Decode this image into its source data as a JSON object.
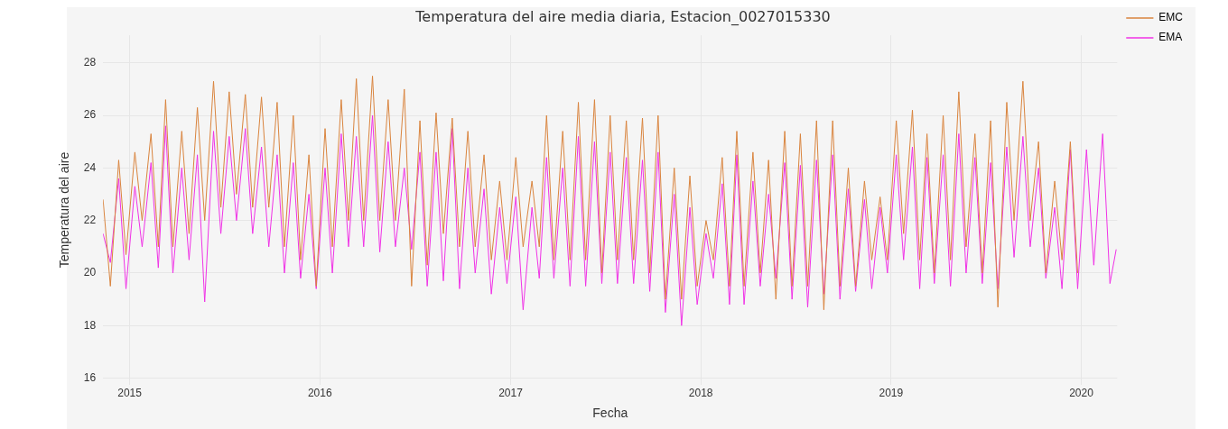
{
  "chart_data": {
    "type": "line",
    "title": "Temperatura del aire media diaria, Estacion_0027015330",
    "xlabel": "Fecha",
    "ylabel": "Temperatura del aire",
    "x": [
      "2014-11-11",
      "2014-11-25",
      "2014-12-11",
      "2014-12-25",
      "2015-01-11",
      "2015-01-25",
      "2015-02-11",
      "2015-02-25",
      "2015-03-11",
      "2015-03-25",
      "2015-04-11",
      "2015-04-25",
      "2015-05-11",
      "2015-05-25",
      "2015-06-11",
      "2015-06-25",
      "2015-07-11",
      "2015-07-25",
      "2015-08-11",
      "2015-08-25",
      "2015-09-11",
      "2015-09-25",
      "2015-10-11",
      "2015-10-25",
      "2015-11-11",
      "2015-11-25",
      "2015-12-11",
      "2015-12-25",
      "2016-01-11",
      "2016-01-25",
      "2016-02-11",
      "2016-02-25",
      "2016-03-11",
      "2016-03-25",
      "2016-04-11",
      "2016-04-25",
      "2016-05-11",
      "2016-05-25",
      "2016-06-11",
      "2016-06-25",
      "2016-07-11",
      "2016-07-25",
      "2016-08-11",
      "2016-08-25",
      "2016-09-11",
      "2016-09-25",
      "2016-10-11",
      "2016-10-25",
      "2016-11-11",
      "2016-11-25",
      "2016-12-11",
      "2016-12-25",
      "2017-01-11",
      "2017-01-25",
      "2017-02-11",
      "2017-02-25",
      "2017-03-11",
      "2017-03-25",
      "2017-04-11",
      "2017-04-25",
      "2017-05-11",
      "2017-05-25",
      "2017-06-11",
      "2017-06-25",
      "2017-07-11",
      "2017-07-25",
      "2017-08-11",
      "2017-08-25",
      "2017-09-11",
      "2017-09-25",
      "2017-10-11",
      "2017-10-25",
      "2017-11-11",
      "2017-11-25",
      "2017-12-11",
      "2017-12-25",
      "2018-01-11",
      "2018-01-25",
      "2018-02-11",
      "2018-02-25",
      "2018-03-11",
      "2018-03-25",
      "2018-04-11",
      "2018-04-25",
      "2018-05-11",
      "2018-05-25",
      "2018-06-11",
      "2018-06-25",
      "2018-07-11",
      "2018-07-25",
      "2018-08-11",
      "2018-08-25",
      "2018-09-11",
      "2018-09-25",
      "2018-10-11",
      "2018-10-25",
      "2018-11-11",
      "2018-11-25",
      "2018-12-11",
      "2018-12-25",
      "2019-01-11",
      "2019-01-25",
      "2019-02-11",
      "2019-02-25",
      "2019-03-11",
      "2019-03-25",
      "2019-04-11",
      "2019-04-25",
      "2019-05-11",
      "2019-05-25",
      "2019-06-11",
      "2019-06-25",
      "2019-07-11",
      "2019-07-25",
      "2019-08-11",
      "2019-08-25",
      "2019-09-11",
      "2019-09-25",
      "2019-10-11",
      "2019-10-25",
      "2019-11-11",
      "2019-11-25",
      "2019-12-11",
      "2019-12-25",
      "2020-01-11",
      "2020-01-25",
      "2020-02-11",
      "2020-02-25",
      "2020-03-08"
    ],
    "series": [
      {
        "name": "EMC",
        "color": "#d9843e",
        "values": [
          22.8,
          19.5,
          24.3,
          20.7,
          24.6,
          22.0,
          25.3,
          21.0,
          26.6,
          21.0,
          25.4,
          21.5,
          26.3,
          22.0,
          27.3,
          22.5,
          26.9,
          23.0,
          26.8,
          22.5,
          26.7,
          22.5,
          26.5,
          21.0,
          26.0,
          20.5,
          24.5,
          19.5,
          25.5,
          21.0,
          26.6,
          22.0,
          27.4,
          22.0,
          27.5,
          22.0,
          26.6,
          22.0,
          27.0,
          19.5,
          25.8,
          20.3,
          26.1,
          21.5,
          25.9,
          21.0,
          25.4,
          21.0,
          24.5,
          20.5,
          23.5,
          20.5,
          24.4,
          21.0,
          23.5,
          21.0,
          26.0,
          20.5,
          25.4,
          20.5,
          26.5,
          20.5,
          26.6,
          20.0,
          26.0,
          20.5,
          25.8,
          20.5,
          25.9,
          20.0,
          26.0,
          19.0,
          24.0,
          19.0,
          23.7,
          19.5,
          22.0,
          20.5,
          24.4,
          19.5,
          25.4,
          19.5,
          24.6,
          20.0,
          24.3,
          19.0,
          25.4,
          19.5,
          25.3,
          19.5,
          25.8,
          18.6,
          25.8,
          19.5,
          24.0,
          19.5,
          23.5,
          20.5,
          22.9,
          20.5,
          25.8,
          21.5,
          26.2,
          20.5,
          25.3,
          20.0,
          26.0,
          20.5,
          26.9,
          21.0,
          25.3,
          20.0,
          25.8,
          18.7,
          26.5,
          22.0,
          27.3,
          22.0,
          25.0,
          20.0,
          23.5,
          20.5,
          25.0,
          20.0,
          null,
          null,
          null,
          null,
          null
        ]
      },
      {
        "name": "EMA",
        "color": "#f032e6",
        "values": [
          21.5,
          20.4,
          23.6,
          19.4,
          23.3,
          21.0,
          24.2,
          20.2,
          25.6,
          20.0,
          24.0,
          20.5,
          24.5,
          18.9,
          25.4,
          21.5,
          25.2,
          22.0,
          25.5,
          21.5,
          24.8,
          21.0,
          24.5,
          20.0,
          24.2,
          19.8,
          23.0,
          19.4,
          24.0,
          20.0,
          25.3,
          21.0,
          25.2,
          21.0,
          26.0,
          20.8,
          25.0,
          21.0,
          24.0,
          20.9,
          24.6,
          19.5,
          24.6,
          19.7,
          25.5,
          19.4,
          24.0,
          20.0,
          23.2,
          19.2,
          22.5,
          19.6,
          22.9,
          18.6,
          22.5,
          19.8,
          24.4,
          19.8,
          24.0,
          19.5,
          25.2,
          19.5,
          25.0,
          19.6,
          24.6,
          19.6,
          24.4,
          19.6,
          24.3,
          19.3,
          24.6,
          18.5,
          23.0,
          18.0,
          22.5,
          18.8,
          21.5,
          19.8,
          23.4,
          18.8,
          24.5,
          18.8,
          23.5,
          19.5,
          23.0,
          19.8,
          24.2,
          19.0,
          24.1,
          18.7,
          24.3,
          19.2,
          24.5,
          19.0,
          23.2,
          19.3,
          22.8,
          19.4,
          22.5,
          20.0,
          24.5,
          20.5,
          24.8,
          19.4,
          24.4,
          19.6,
          24.5,
          19.5,
          25.3,
          20.0,
          24.4,
          19.6,
          24.2,
          19.4,
          24.8,
          20.6,
          25.2,
          21.0,
          24.0,
          19.8,
          22.5,
          19.4,
          24.7,
          19.4,
          24.7,
          20.3,
          25.3,
          19.6,
          20.9
        ]
      }
    ],
    "xlim": [
      "2014-11-11",
      "2020-03-10"
    ],
    "xticks": [
      "2015",
      "2016",
      "2017",
      "2018",
      "2019",
      "2020"
    ],
    "ylim": [
      15.75,
      29.05
    ],
    "yticks": [
      16,
      18,
      20,
      22,
      24,
      26,
      28
    ],
    "grid": true,
    "legend": "top right",
    "marker": "none",
    "line_style": "solid"
  }
}
